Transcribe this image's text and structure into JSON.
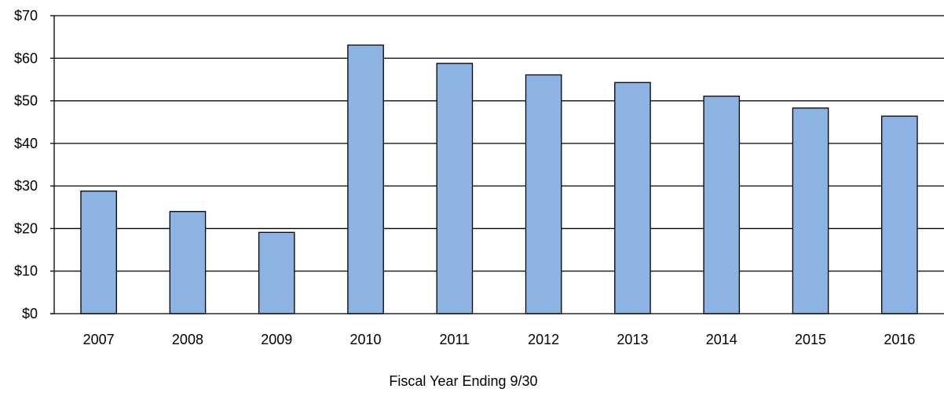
{
  "chart_data": {
    "type": "bar",
    "title": "",
    "xlabel": "Fiscal Year Ending 9/30",
    "ylabel": "",
    "categories": [
      "2007",
      "2008",
      "2009",
      "2010",
      "2011",
      "2012",
      "2013",
      "2014",
      "2015",
      "2016"
    ],
    "values": [
      28.8,
      24.0,
      19.1,
      63.1,
      58.8,
      56.1,
      54.3,
      51.1,
      48.3,
      46.4
    ],
    "ylim": [
      0,
      70
    ],
    "yticks": [
      0,
      10,
      20,
      30,
      40,
      50,
      60,
      70
    ],
    "ytick_labels": [
      "$0",
      "$10",
      "$20",
      "$30",
      "$40",
      "$50",
      "$60",
      "$70"
    ],
    "grid": true,
    "legend": "none",
    "colors": {
      "bar_fill": "#8db3e2",
      "bar_stroke": "#000000",
      "gridline": "#000000"
    }
  }
}
